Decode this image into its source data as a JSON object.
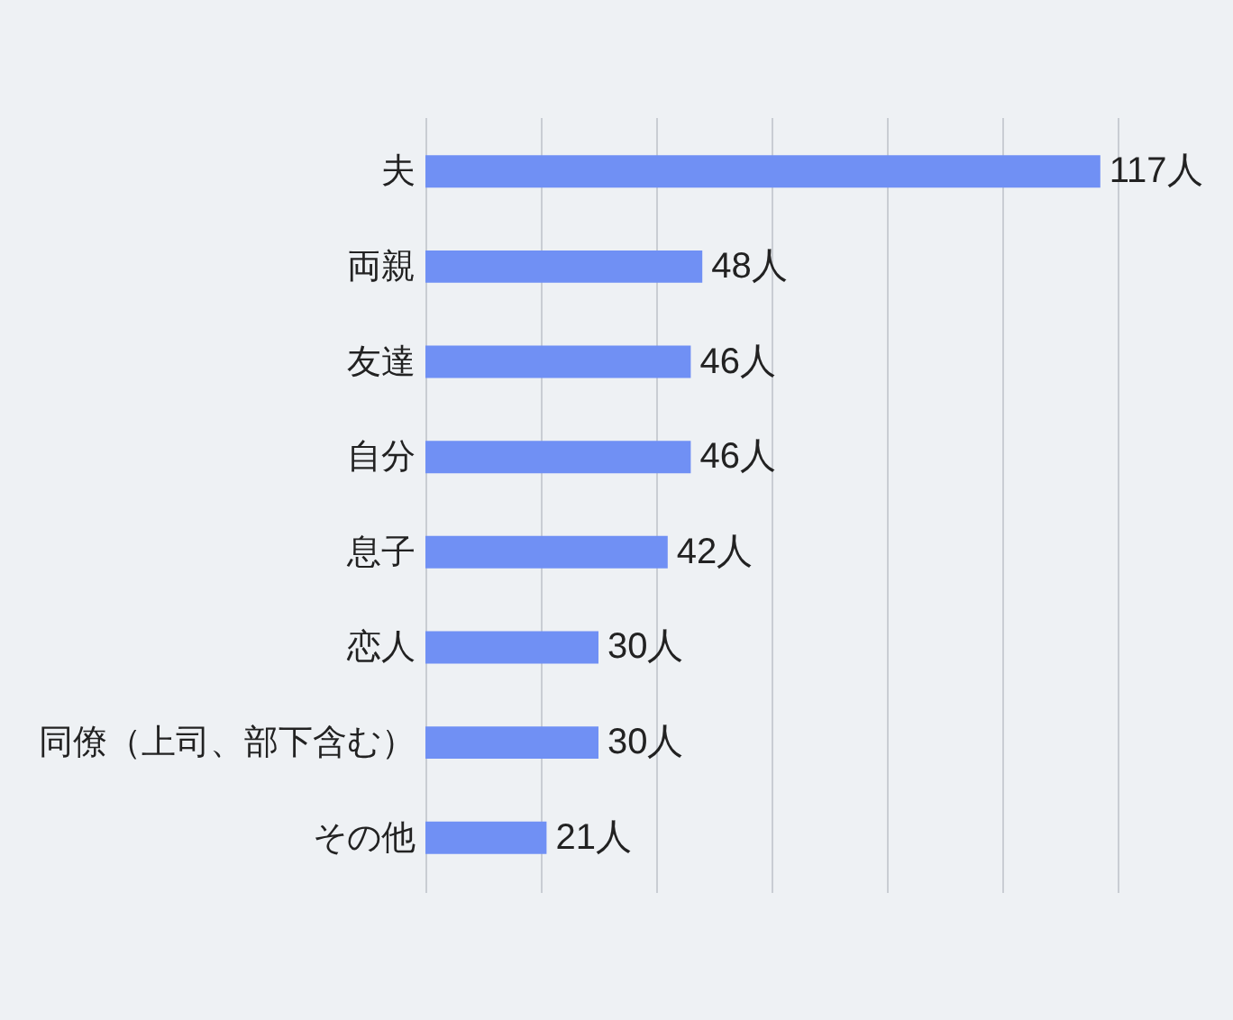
{
  "chart_data": {
    "type": "bar",
    "orientation": "horizontal",
    "categories": [
      "夫",
      "両親",
      "友達",
      "自分",
      "息子",
      "恋人",
      "同僚（上司、部下含む）",
      "その他"
    ],
    "values": [
      117,
      48,
      46,
      46,
      42,
      30,
      30,
      21
    ],
    "value_labels": [
      "117人",
      "48人",
      "46人",
      "46人",
      "42人",
      "30人",
      "30人",
      "21人"
    ],
    "color": "#7090f4",
    "xlim": [
      0,
      120
    ],
    "xticks": [
      {
        "value": 0,
        "label": null
      },
      {
        "value": 20,
        "label": null
      },
      {
        "value": 40,
        "label": null
      },
      {
        "value": 60,
        "label": null
      },
      {
        "value": 80,
        "label": null
      },
      {
        "value": 100,
        "label": null
      },
      {
        "value": 120,
        "label": null
      }
    ],
    "grid": "x",
    "tick_labels": "y"
  }
}
